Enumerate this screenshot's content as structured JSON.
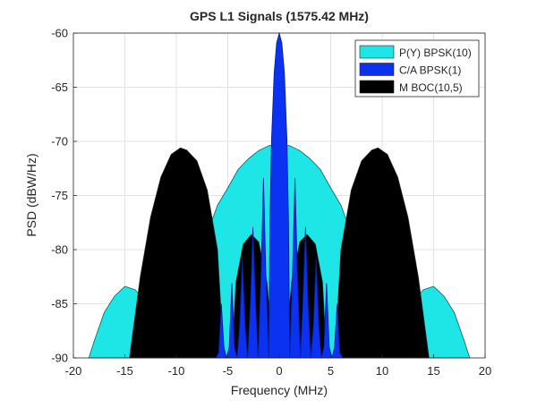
{
  "chart_data": {
    "type": "area",
    "title": "GPS L1 Signals (1575.42 MHz)",
    "xlabel": "Frequency (MHz)",
    "ylabel": "PSD (dBW/Hz)",
    "xlim": [
      -20,
      20
    ],
    "ylim": [
      -90,
      -60
    ],
    "xticks": [
      -20,
      -15,
      -10,
      -5,
      0,
      5,
      10,
      15,
      20
    ],
    "yticks": [
      -60,
      -65,
      -70,
      -75,
      -80,
      -85,
      -90
    ],
    "grid": true,
    "legend_position": "top-right",
    "symmetric_about_zero": true,
    "series": [
      {
        "name": "P(Y) BPSK(10)",
        "color": "#1ee6e6",
        "x": [
          0,
          1,
          2,
          3,
          4,
          5,
          6,
          7,
          8,
          8.5,
          9,
          9.5,
          10.23,
          11.2,
          12,
          13,
          14,
          15,
          16,
          17,
          18,
          18.5
        ],
        "y": [
          -70.3,
          -70.4,
          -70.85,
          -71.6,
          -72.6,
          -74.3,
          -75.9,
          -78.5,
          -82.1,
          -84.5,
          -87.8,
          -90,
          -90,
          -90,
          -87.3,
          -84.8,
          -83.7,
          -83.4,
          -84.3,
          -85.8,
          -88.5,
          -90
        ]
      },
      {
        "name": "M BOC(10,5)",
        "color": "#000000",
        "x": [
          0,
          0.6,
          1.2,
          2,
          2.7,
          3.5,
          4.2,
          4.6,
          5.4,
          6,
          7,
          8,
          9,
          9.6,
          10.5,
          11.5,
          12.5,
          13.5,
          14.2,
          14.55
        ],
        "y": [
          -90,
          -90,
          -83,
          -79.3,
          -78.6,
          -79.5,
          -83,
          -90,
          -90,
          -80,
          -74.5,
          -71.8,
          -70.8,
          -70.6,
          -71.2,
          -73.3,
          -77,
          -82.5,
          -87.5,
          -90
        ]
      },
      {
        "name": "C/A BPSK(1)",
        "color": "#0a32f0",
        "x": [
          0,
          0.25,
          0.5,
          0.75,
          0.9,
          1.02,
          1.3,
          1.53,
          1.76,
          2.05,
          2.3,
          2.56,
          2.8,
          3.07,
          3.32,
          3.58,
          3.84,
          4.09,
          4.35,
          4.6,
          4.86,
          5.12,
          5.37,
          5.63,
          5.88,
          6.14
        ],
        "y": [
          -60,
          -60.9,
          -63.7,
          -69.8,
          -77.5,
          -90,
          -82,
          -73.4,
          -82,
          -90,
          -85,
          -77.9,
          -85,
          -90,
          -87,
          -80.8,
          -87,
          -90,
          -89,
          -83.1,
          -89,
          -90,
          -89,
          -85,
          -89.5,
          -90
        ]
      }
    ],
    "legend_order": [
      "P(Y) BPSK(10)",
      "C/A BPSK(1)",
      "M BOC(10,5)"
    ]
  }
}
